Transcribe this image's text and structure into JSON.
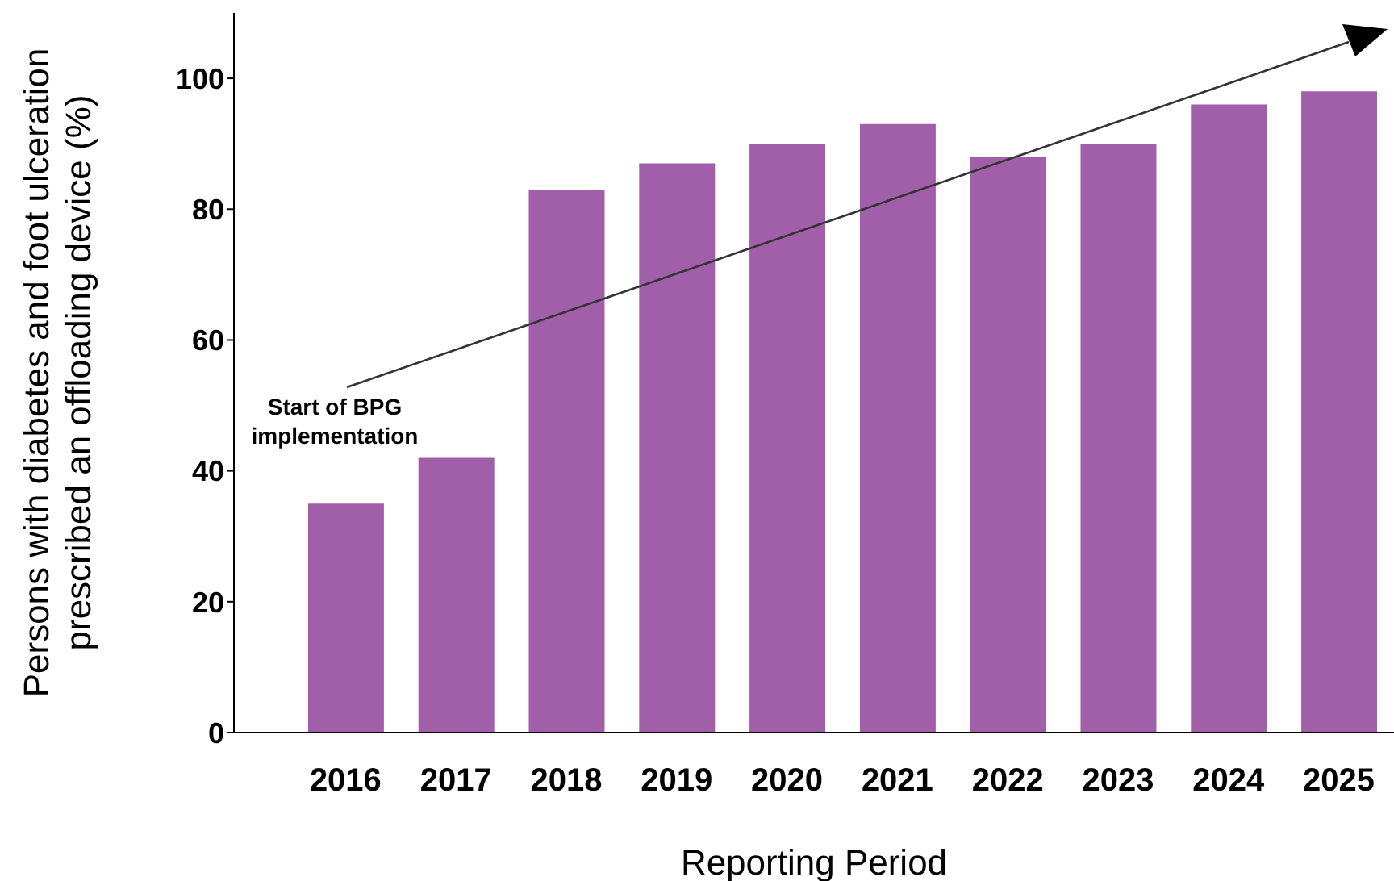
{
  "chart_data": {
    "type": "bar",
    "categories": [
      "2016",
      "2017",
      "2018",
      "2019",
      "2020",
      "2021",
      "2022",
      "2023",
      "2024",
      "2025"
    ],
    "values": [
      35,
      42,
      83,
      87,
      90,
      93,
      88,
      90,
      96,
      98
    ],
    "color": "#a05fa8",
    "xlabel": "Reporting Period",
    "ylabel": "Persons with diabetes and foot ulceration\nprescribed an offloading device (%)",
    "ylim": [
      0,
      110
    ],
    "yticks": [
      0,
      20,
      40,
      60,
      80,
      100
    ],
    "annotations": [
      "Start of BPG\nimplementation"
    ]
  }
}
